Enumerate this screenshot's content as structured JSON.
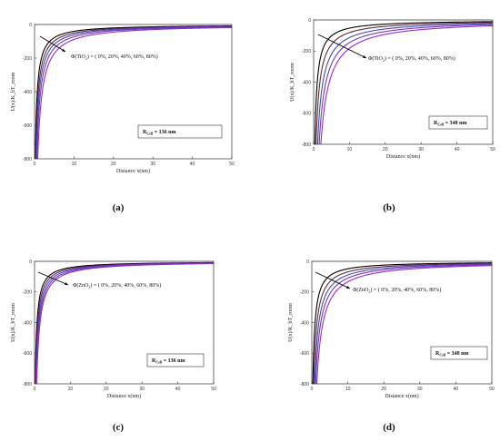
{
  "chart_data": [
    {
      "type": "line",
      "caption": "(a)",
      "xlabel": "Distance x(nm)",
      "ylabel": "U(x)/K_bT_room",
      "xlim": [
        0,
        50
      ],
      "ylim": [
        -800,
        0
      ],
      "xticks": [
        0,
        10,
        20,
        30,
        40,
        50
      ],
      "yticks": [
        0,
        -200,
        -400,
        -600,
        -800
      ],
      "annotation_prefix": "Φ(TiO",
      "annotation_sub": "2",
      "annotation_rest": ") = ( 0%, 20%, 40%, 60%, 80%)",
      "r_label": "R",
      "r_sub": "Cell",
      "r_value": " = 136 nm",
      "series": [
        {
          "scale": 1.0,
          "color": "#000000"
        },
        {
          "scale": 1.25,
          "color": "#6b2a2a"
        },
        {
          "scale": 1.5,
          "color": "#3b4fb8"
        },
        {
          "scale": 1.8,
          "color": "#6a3fb0"
        },
        {
          "scale": 2.2,
          "color": "#a020f0"
        }
      ]
    },
    {
      "type": "line",
      "caption": "(b)",
      "xlabel": "Distance x(nm)",
      "ylabel": "U(x)/K_bT_room",
      "xlim": [
        0,
        50
      ],
      "ylim": [
        -800,
        0
      ],
      "xticks": [
        0,
        10,
        20,
        30,
        40,
        50
      ],
      "yticks": [
        0,
        -200,
        -400,
        -600,
        -800
      ],
      "annotation_prefix": "Φ(TiO",
      "annotation_sub": "2",
      "annotation_rest": ") = ( 0%, 20%, 40%, 60%, 80%)",
      "r_label": "R",
      "r_sub": "Cell",
      "r_value": " = 348 nm",
      "series": [
        {
          "scale": 1.3,
          "color": "#000000"
        },
        {
          "scale": 2.0,
          "color": "#6b2a2a"
        },
        {
          "scale": 2.8,
          "color": "#3b4fb8"
        },
        {
          "scale": 3.6,
          "color": "#6a3fb0"
        },
        {
          "scale": 4.5,
          "color": "#a020f0"
        }
      ]
    },
    {
      "type": "line",
      "caption": "(c)",
      "xlabel": "Distance x(nm)",
      "ylabel": "U(x)/K_bT_room",
      "xlim": [
        0,
        50
      ],
      "ylim": [
        -800,
        0
      ],
      "xticks": [
        0,
        10,
        20,
        30,
        40,
        50
      ],
      "yticks": [
        0,
        -200,
        -400,
        -600,
        -800
      ],
      "annotation_prefix": "Φ(ZnO",
      "annotation_sub": "2",
      "annotation_rest": ") = ( 0%, 20%, 40%, 60%, 80%)",
      "r_label": "R",
      "r_sub": "Cell",
      "r_value": " = 136 nm",
      "series": [
        {
          "scale": 1.0,
          "color": "#000000"
        },
        {
          "scale": 1.2,
          "color": "#6b2a2a"
        },
        {
          "scale": 1.4,
          "color": "#3b4fb8"
        },
        {
          "scale": 1.6,
          "color": "#6a3fb0"
        },
        {
          "scale": 1.8,
          "color": "#a020f0"
        }
      ]
    },
    {
      "type": "line",
      "caption": "(d)",
      "xlabel": "Distance x(nm)",
      "ylabel": "U(x)/K_bT_room",
      "xlim": [
        0,
        50
      ],
      "ylim": [
        -800,
        0
      ],
      "xticks": [
        0,
        10,
        20,
        30,
        40,
        50
      ],
      "yticks": [
        0,
        -200,
        -400,
        -600,
        -800
      ],
      "annotation_prefix": "Φ(ZnO",
      "annotation_sub": "2",
      "annotation_rest": ") = ( 0%, 20%, 40%, 60%, 80%)",
      "r_label": "R",
      "r_sub": "Cell",
      "r_value": " = 348 nm",
      "series": [
        {
          "scale": 1.2,
          "color": "#000000"
        },
        {
          "scale": 1.7,
          "color": "#6b2a2a"
        },
        {
          "scale": 2.2,
          "color": "#3b4fb8"
        },
        {
          "scale": 2.7,
          "color": "#6a3fb0"
        },
        {
          "scale": 3.3,
          "color": "#a020f0"
        }
      ]
    }
  ]
}
